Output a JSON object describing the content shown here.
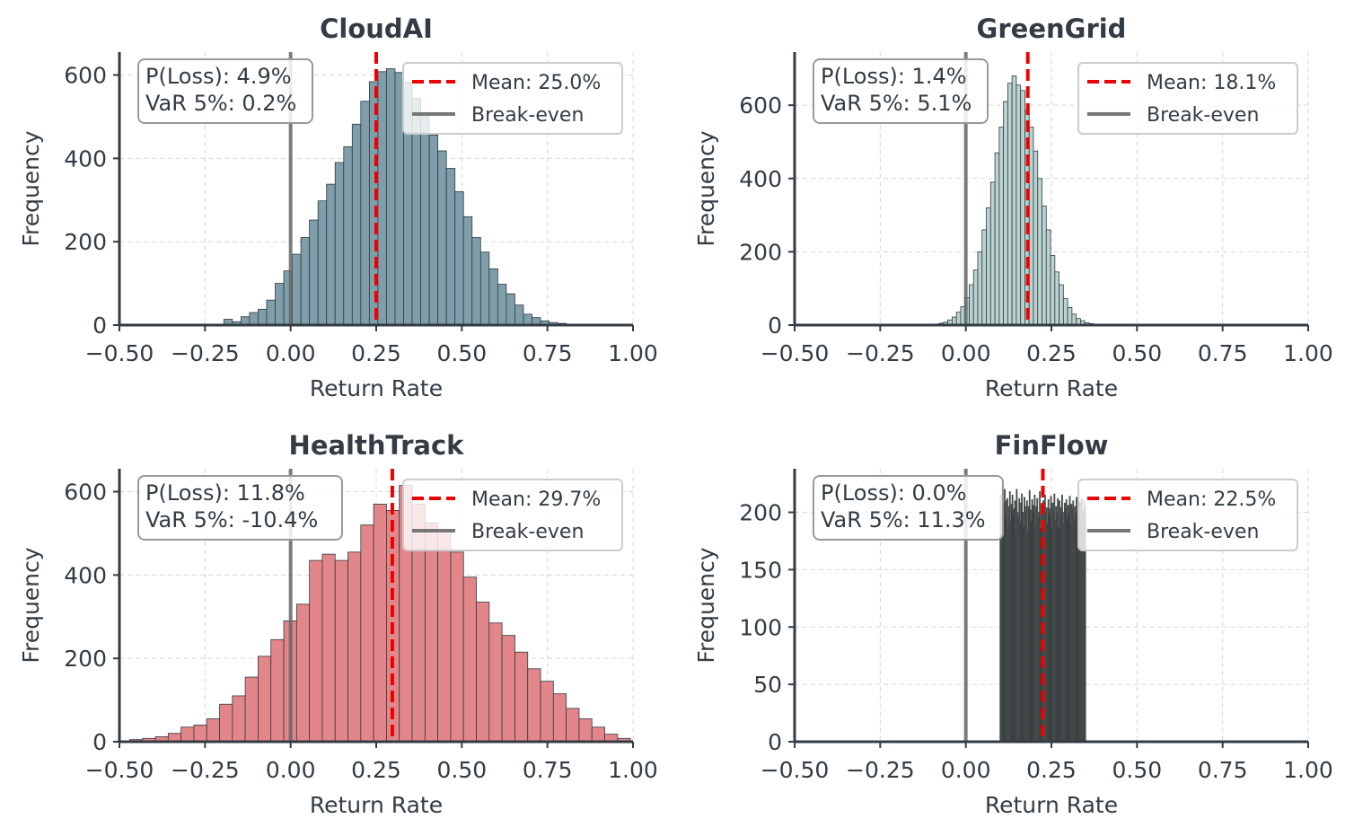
{
  "chart_data": [
    {
      "type": "histogram",
      "title": "CloudAI",
      "xlabel": "Return Rate",
      "ylabel": "Frequency",
      "xlim": [
        -0.5,
        1.0
      ],
      "ylim": [
        0,
        655
      ],
      "xticks": [
        "−0.50",
        "−0.25",
        "0.00",
        "0.25",
        "0.50",
        "0.75",
        "1.00"
      ],
      "yticks": [
        0,
        200,
        400,
        600
      ],
      "grid": true,
      "legend_placement": "upper right",
      "bar_color": "#7f9ea9",
      "bins": {
        "start": -0.195,
        "width": 0.025,
        "counts": [
          14,
          8,
          20,
          30,
          38,
          60,
          100,
          130,
          170,
          210,
          252,
          298,
          338,
          390,
          428,
          482,
          537,
          584,
          608,
          615,
          606,
          582,
          544,
          500,
          456,
          418,
          376,
          320,
          260,
          210,
          175,
          135,
          98,
          75,
          48,
          26,
          18,
          10,
          6,
          4
        ]
      },
      "mean": 0.25,
      "break_even": 0.0,
      "stats": {
        "p_loss": "P(Loss): 4.9%",
        "var": "VaR 5%: 0.2%"
      },
      "legend": {
        "mean": "Mean: 25.0%",
        "break_even": "Break-even"
      }
    },
    {
      "type": "histogram",
      "title": "GreenGrid",
      "xlabel": "Return Rate",
      "ylabel": "Frequency",
      "xlim": [
        -0.5,
        1.0
      ],
      "ylim": [
        0,
        745
      ],
      "xticks": [
        "−0.50",
        "−0.25",
        "0.00",
        "0.25",
        "0.50",
        "0.75",
        "1.00"
      ],
      "yticks": [
        0,
        200,
        400,
        600
      ],
      "grid": true,
      "legend_placement": "upper right",
      "bar_color": "#bad3d0",
      "bins": {
        "start": -0.09,
        "width": 0.0125,
        "counts": [
          3,
          5,
          8,
          14,
          22,
          35,
          50,
          75,
          110,
          150,
          200,
          260,
          320,
          390,
          470,
          540,
          610,
          660,
          680,
          655,
          640,
          585,
          540,
          475,
          400,
          325,
          260,
          190,
          145,
          110,
          72,
          48,
          30,
          18,
          12,
          6,
          4
        ]
      },
      "mean": 0.181,
      "break_even": 0.0,
      "stats": {
        "p_loss": "P(Loss): 1.4%",
        "var": "VaR 5%: 5.1%"
      },
      "legend": {
        "mean": "Mean: 18.1%",
        "break_even": "Break-even"
      }
    },
    {
      "type": "histogram",
      "title": "HealthTrack",
      "xlabel": "Return Rate",
      "ylabel": "Frequency",
      "xlim": [
        -0.5,
        1.0
      ],
      "ylim": [
        0,
        655
      ],
      "xticks": [
        "−0.50",
        "−0.25",
        "0.00",
        "0.25",
        "0.50",
        "0.75",
        "1.00"
      ],
      "yticks": [
        0,
        200,
        400,
        600
      ],
      "grid": true,
      "legend_placement": "upper right",
      "bar_color": "#e3868a",
      "bins": {
        "start": -0.47,
        "width": 0.0375,
        "counts": [
          5,
          8,
          12,
          20,
          35,
          40,
          55,
          90,
          110,
          155,
          205,
          245,
          290,
          330,
          435,
          450,
          435,
          455,
          520,
          570,
          555,
          615,
          570,
          525,
          505,
          455,
          395,
          335,
          285,
          255,
          215,
          175,
          145,
          115,
          80,
          55,
          35,
          18,
          8
        ]
      },
      "mean": 0.297,
      "break_even": 0.0,
      "stats": {
        "p_loss": "P(Loss): 11.8%",
        "var": "VaR 5%: -10.4%"
      },
      "legend": {
        "mean": "Mean: 29.7%",
        "break_even": "Break-even"
      }
    },
    {
      "type": "histogram",
      "title": "FinFlow",
      "xlabel": "Return Rate",
      "ylabel": "Frequency",
      "xlim": [
        -0.5,
        1.0
      ],
      "ylim": [
        0,
        238
      ],
      "xticks": [
        "−0.50",
        "−0.25",
        "0.00",
        "0.25",
        "0.50",
        "0.75",
        "1.00"
      ],
      "yticks": [
        0,
        50,
        100,
        150,
        200
      ],
      "grid": true,
      "legend_placement": "upper right",
      "bar_color": "#b99a6a",
      "bins": {
        "start": 0.1,
        "width": 0.0025,
        "counts": [
          215,
          200,
          222,
          185,
          208,
          220,
          195,
          210,
          212,
          188,
          205,
          218,
          192,
          207,
          215,
          198,
          203,
          210,
          185,
          220,
          200,
          195,
          212,
          190,
          208,
          216,
          200,
          187,
          213,
          205,
          198,
          210,
          183,
          205,
          219,
          202,
          192,
          211,
          206,
          199,
          215,
          188,
          205,
          212,
          195,
          200,
          218,
          186,
          207,
          202,
          210,
          194,
          215,
          199,
          204,
          190,
          211,
          203,
          197,
          214,
          185,
          208,
          201,
          216,
          193,
          205,
          199,
          212,
          187,
          210,
          204,
          196,
          215,
          200,
          190,
          208,
          203,
          211,
          195,
          206,
          198,
          214,
          189,
          207,
          202,
          210,
          194,
          205,
          200,
          213,
          191,
          206,
          199,
          209,
          197,
          212,
          201,
          188,
          210,
          205
        ]
      },
      "mean": 0.225,
      "break_even": 0.0,
      "stats": {
        "p_loss": "P(Loss): 0.0%",
        "var": "VaR 5%: 11.3%"
      },
      "legend": {
        "mean": "Mean: 22.5%",
        "break_even": "Break-even"
      }
    }
  ]
}
